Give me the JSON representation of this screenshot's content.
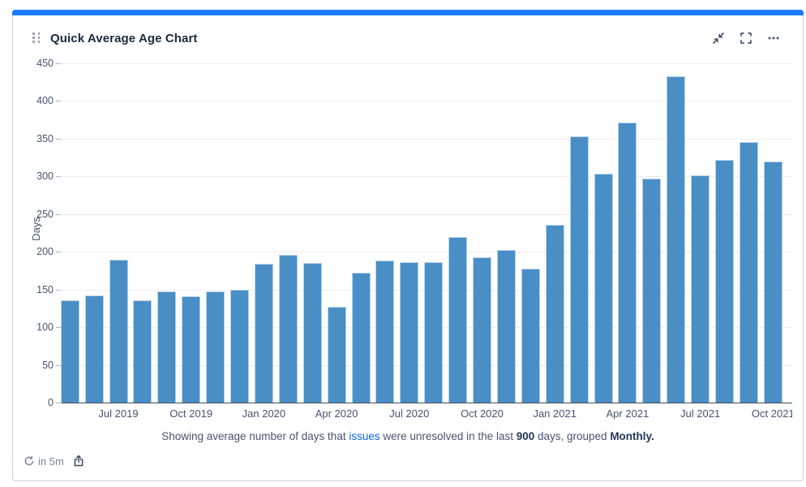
{
  "card": {
    "title": "Quick Average Age Chart",
    "accent_color": "#1d7afc",
    "header_actions": [
      {
        "icon": "collapse-icon"
      },
      {
        "icon": "fullscreen-icon"
      },
      {
        "icon": "more-options-icon"
      }
    ],
    "footer_bar": {
      "refresh_icon": "refresh-icon",
      "refresh_label": "in 5m",
      "export_icon": "export-icon"
    }
  },
  "caption": {
    "prefix": "Showing average number of days that ",
    "link": "issues",
    "middle": " were unresolved in the last ",
    "days": "900",
    "after_days": " days, grouped ",
    "grouping": "Monthly."
  },
  "chart_data": {
    "type": "bar",
    "title": "Quick Average Age Chart",
    "xlabel": "",
    "ylabel": "Days",
    "ylim": [
      0,
      450
    ],
    "ytick_step": 50,
    "grid": true,
    "bar_color": "#4a8ec6",
    "bar_edge_color": "#b5d3ec",
    "categories": [
      "May 2019",
      "Jun 2019",
      "Jul 2019",
      "Aug 2019",
      "Sep 2019",
      "Oct 2019",
      "Nov 2019",
      "Dec 2019",
      "Jan 2020",
      "Feb 2020",
      "Mar 2020",
      "Apr 2020",
      "May 2020",
      "Jun 2020",
      "Jul 2020",
      "Aug 2020",
      "Sep 2020",
      "Oct 2020",
      "Nov 2020",
      "Dec 2020",
      "Jan 2021",
      "Feb 2021",
      "Mar 2021",
      "Apr 2021",
      "May 2021",
      "Jun 2021",
      "Jul 2021",
      "Aug 2021",
      "Sep 2021",
      "Oct 2021"
    ],
    "values": [
      136,
      142,
      189,
      136,
      148,
      141,
      148,
      150,
      184,
      196,
      185,
      127,
      172,
      188,
      186,
      186,
      220,
      193,
      202,
      178,
      236,
      353,
      304,
      371,
      297,
      433,
      301,
      322,
      346,
      320
    ],
    "xtick_labels": [
      "Jul 2019",
      "Oct 2019",
      "Jan 2020",
      "Apr 2020",
      "Jul 2020",
      "Oct 2020",
      "Jan 2021",
      "Apr 2021",
      "Jul 2021",
      "Oct 2021"
    ],
    "xtick_start_index": 2,
    "xtick_every": 3
  }
}
